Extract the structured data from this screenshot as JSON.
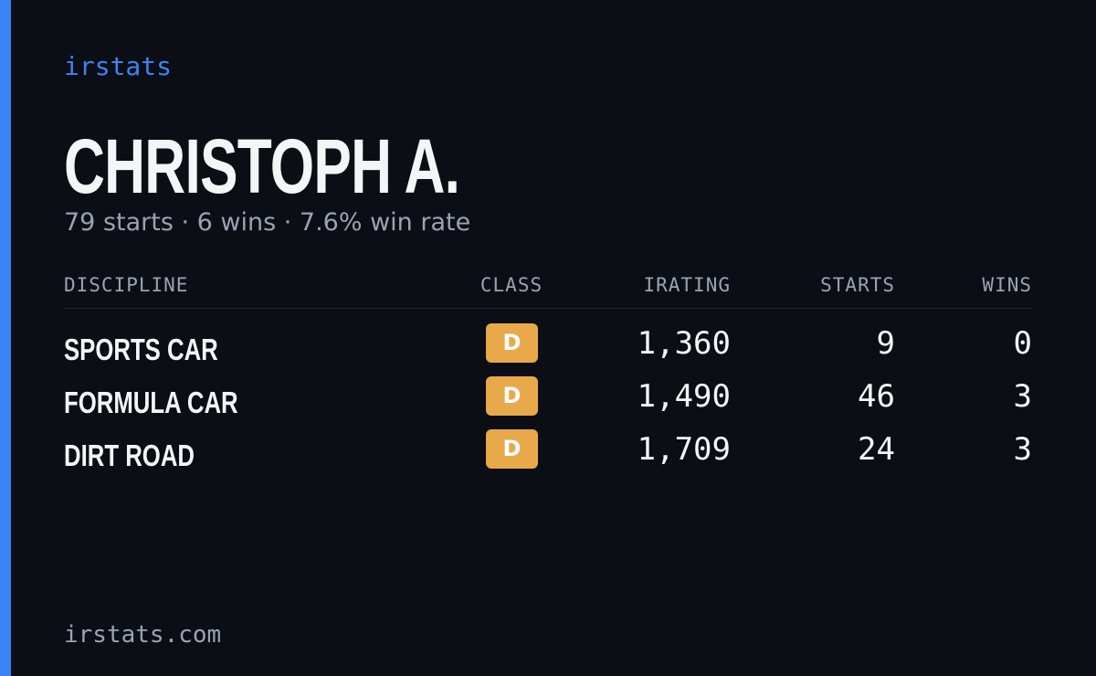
{
  "brand": "irstats",
  "header": {
    "name": "CHRISTOPH A.",
    "summary": "79 starts · 6 wins · 7.6% win rate"
  },
  "table": {
    "columns": [
      "DISCIPLINE",
      "CLASS",
      "IRATING",
      "STARTS",
      "WINS"
    ],
    "rows": [
      [
        "SPORTS CAR",
        "D",
        "1,360",
        "9",
        "0"
      ],
      [
        "FORMULA CAR",
        "D",
        "1,490",
        "46",
        "3"
      ],
      [
        "DIRT ROAD",
        "D",
        "1,709",
        "24",
        "3"
      ]
    ]
  },
  "footer": "irstats.com"
}
